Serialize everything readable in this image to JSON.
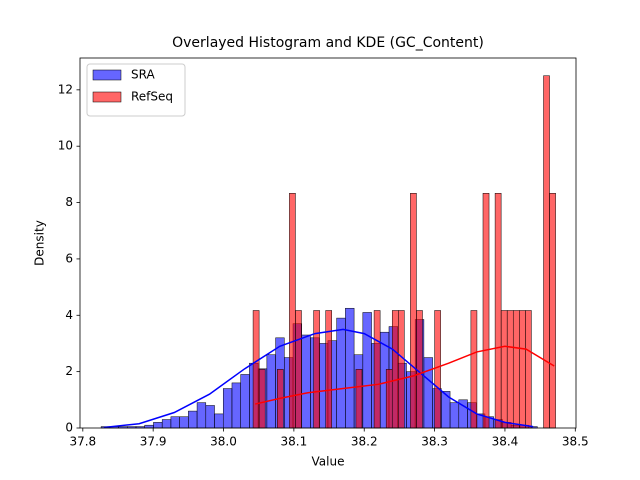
{
  "chart_data": {
    "type": "histogram",
    "title": "Overlayed Histogram and KDE (GC_Content)",
    "xlabel": "Value",
    "ylabel": "Density",
    "xlim": [
      37.796,
      38.501
    ],
    "ylim": [
      0,
      13.13
    ],
    "xticks": [
      37.8,
      37.9,
      {
        "value": 38,
        "label": "38.0"
      },
      38.1,
      38.2,
      38.3,
      38.4,
      38.5
    ],
    "yticks": [
      0,
      2,
      4,
      6,
      8,
      10,
      12
    ],
    "legend": "upper left",
    "series": [
      {
        "name": "SRA",
        "color": "#0000ff",
        "bins": [
          37.826,
          37.8384,
          37.8508,
          37.8632,
          37.8756,
          37.888,
          37.9004,
          37.9128,
          37.9252,
          37.9376,
          37.95,
          37.9624,
          37.9748,
          37.9872,
          37.9996,
          38.012,
          38.0244,
          38.0368,
          38.0492,
          38.0616,
          38.074,
          38.0864,
          38.0988,
          38.1112,
          38.1236,
          38.136,
          38.1484,
          38.1608,
          38.1732,
          38.1856,
          38.198,
          38.2104,
          38.2228,
          38.2352,
          38.2476,
          38.26,
          38.2724,
          38.2848,
          38.2972,
          38.3096,
          38.322,
          38.3344,
          38.3468,
          38.3592,
          38.3716,
          38.384,
          38.3964,
          38.4088,
          38.4212,
          38.4336,
          38.446
        ],
        "values": [
          0.05,
          0.05,
          0.05,
          0.05,
          0.05,
          0.1,
          0.2,
          0.3,
          0.4,
          0.4,
          0.6,
          0.9,
          0.8,
          0.5,
          1.4,
          1.6,
          1.9,
          2.3,
          2.1,
          2.6,
          3.2,
          2.5,
          3.7,
          3.3,
          3.2,
          3.0,
          3.1,
          3.9,
          4.25,
          2.6,
          4.1,
          3.0,
          3.4,
          3.6,
          2.3,
          2.0,
          3.85,
          2.5,
          1.4,
          1.3,
          0.9,
          1.0,
          0.9,
          0.5,
          0.4,
          0.3,
          0.2,
          0.1,
          0.1,
          0.05
        ],
        "kde_x": [
          37.83,
          37.88,
          37.93,
          37.98,
          38.03,
          38.08,
          38.13,
          38.17,
          38.2,
          38.24,
          38.28,
          38.32,
          38.36,
          38.4,
          38.44
        ],
        "kde_y": [
          0.02,
          0.15,
          0.55,
          1.2,
          2.1,
          2.9,
          3.35,
          3.5,
          3.35,
          2.8,
          1.95,
          1.1,
          0.5,
          0.2,
          0.05
        ]
      },
      {
        "name": "RefSeq",
        "color": "#ff0000",
        "bins": [
          38.042,
          38.0506,
          38.0592,
          38.0678,
          38.0764,
          38.085,
          38.0936,
          38.1022,
          38.1108,
          38.1194,
          38.128,
          38.1366,
          38.1452,
          38.1538,
          38.1624,
          38.171,
          38.1796,
          38.1882,
          38.1968,
          38.2054,
          38.214,
          38.2226,
          38.2312,
          38.2398,
          38.2484,
          38.257,
          38.2656,
          38.2742,
          38.2828,
          38.2914,
          38.3,
          38.3086,
          38.3172,
          38.3258,
          38.3344,
          38.343,
          38.3516,
          38.3602,
          38.3688,
          38.3774,
          38.386,
          38.3946,
          38.4032,
          38.4118,
          38.4204,
          38.429,
          38.4376,
          38.4462,
          38.4548,
          38.4634,
          38.472
        ],
        "values": [
          4.17,
          2.08,
          0,
          0,
          2.08,
          0,
          8.33,
          4.17,
          0,
          0,
          4.17,
          0,
          4.17,
          0,
          0,
          0,
          0,
          2.08,
          0,
          0,
          4.17,
          0,
          2.08,
          4.17,
          4.17,
          0,
          8.33,
          4.17,
          0,
          0,
          4.17,
          0,
          0,
          0,
          0,
          0,
          4.17,
          0,
          8.33,
          0,
          8.33,
          4.17,
          4.17,
          4.17,
          4.17,
          4.17,
          0,
          0,
          12.5,
          8.33
        ],
        "kde_x": [
          38.045,
          38.08,
          38.12,
          38.17,
          38.22,
          38.27,
          38.32,
          38.36,
          38.4,
          38.43,
          38.47
        ],
        "kde_y": [
          0.85,
          1.05,
          1.25,
          1.4,
          1.55,
          1.85,
          2.3,
          2.7,
          2.9,
          2.8,
          2.2
        ]
      }
    ]
  }
}
